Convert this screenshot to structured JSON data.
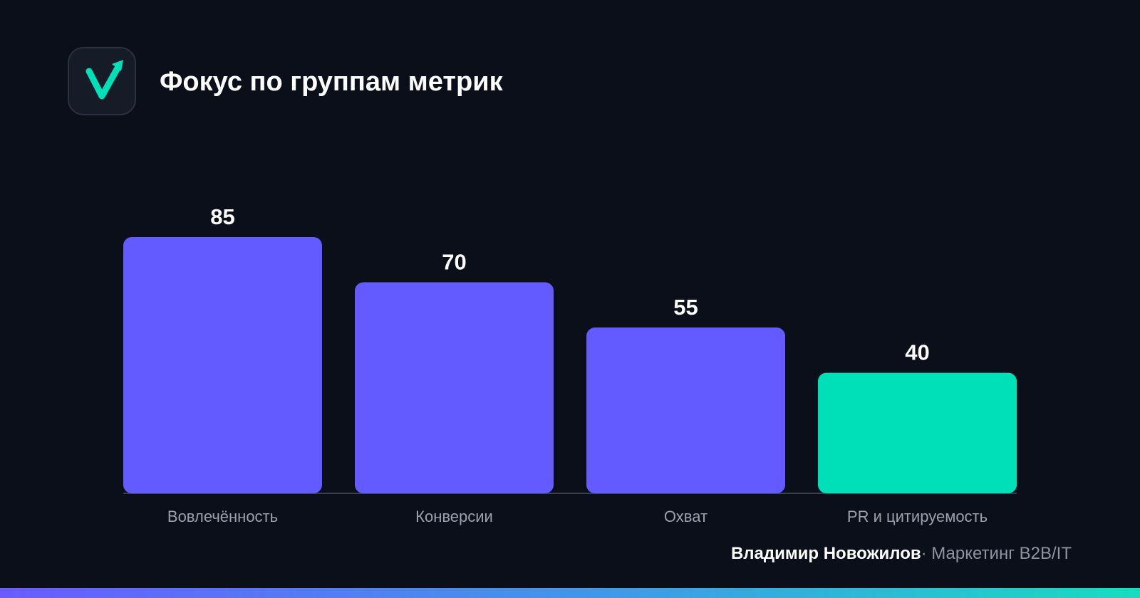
{
  "header": {
    "title": "Фокус по группам метрик",
    "logo_icon": "checkmark-arrow-icon"
  },
  "chart_data": {
    "type": "bar",
    "categories": [
      "Вовлечённость",
      "Конверсии",
      "Охват",
      "PR и цитируемость"
    ],
    "values": [
      85,
      70,
      55,
      40
    ],
    "bar_colors": [
      "#635bff",
      "#635bff",
      "#635bff",
      "#00e0b8"
    ],
    "ylim": [
      0,
      85
    ],
    "grid": false,
    "axis_color": "#3a4052"
  },
  "footer": {
    "author": "Владимир Новожилов",
    "separator": "·",
    "tagline": "Маркетинг B2B/IT"
  },
  "colors": {
    "background": "#0b0f1a",
    "accent": "#635bff",
    "highlight": "#00e0b8"
  }
}
